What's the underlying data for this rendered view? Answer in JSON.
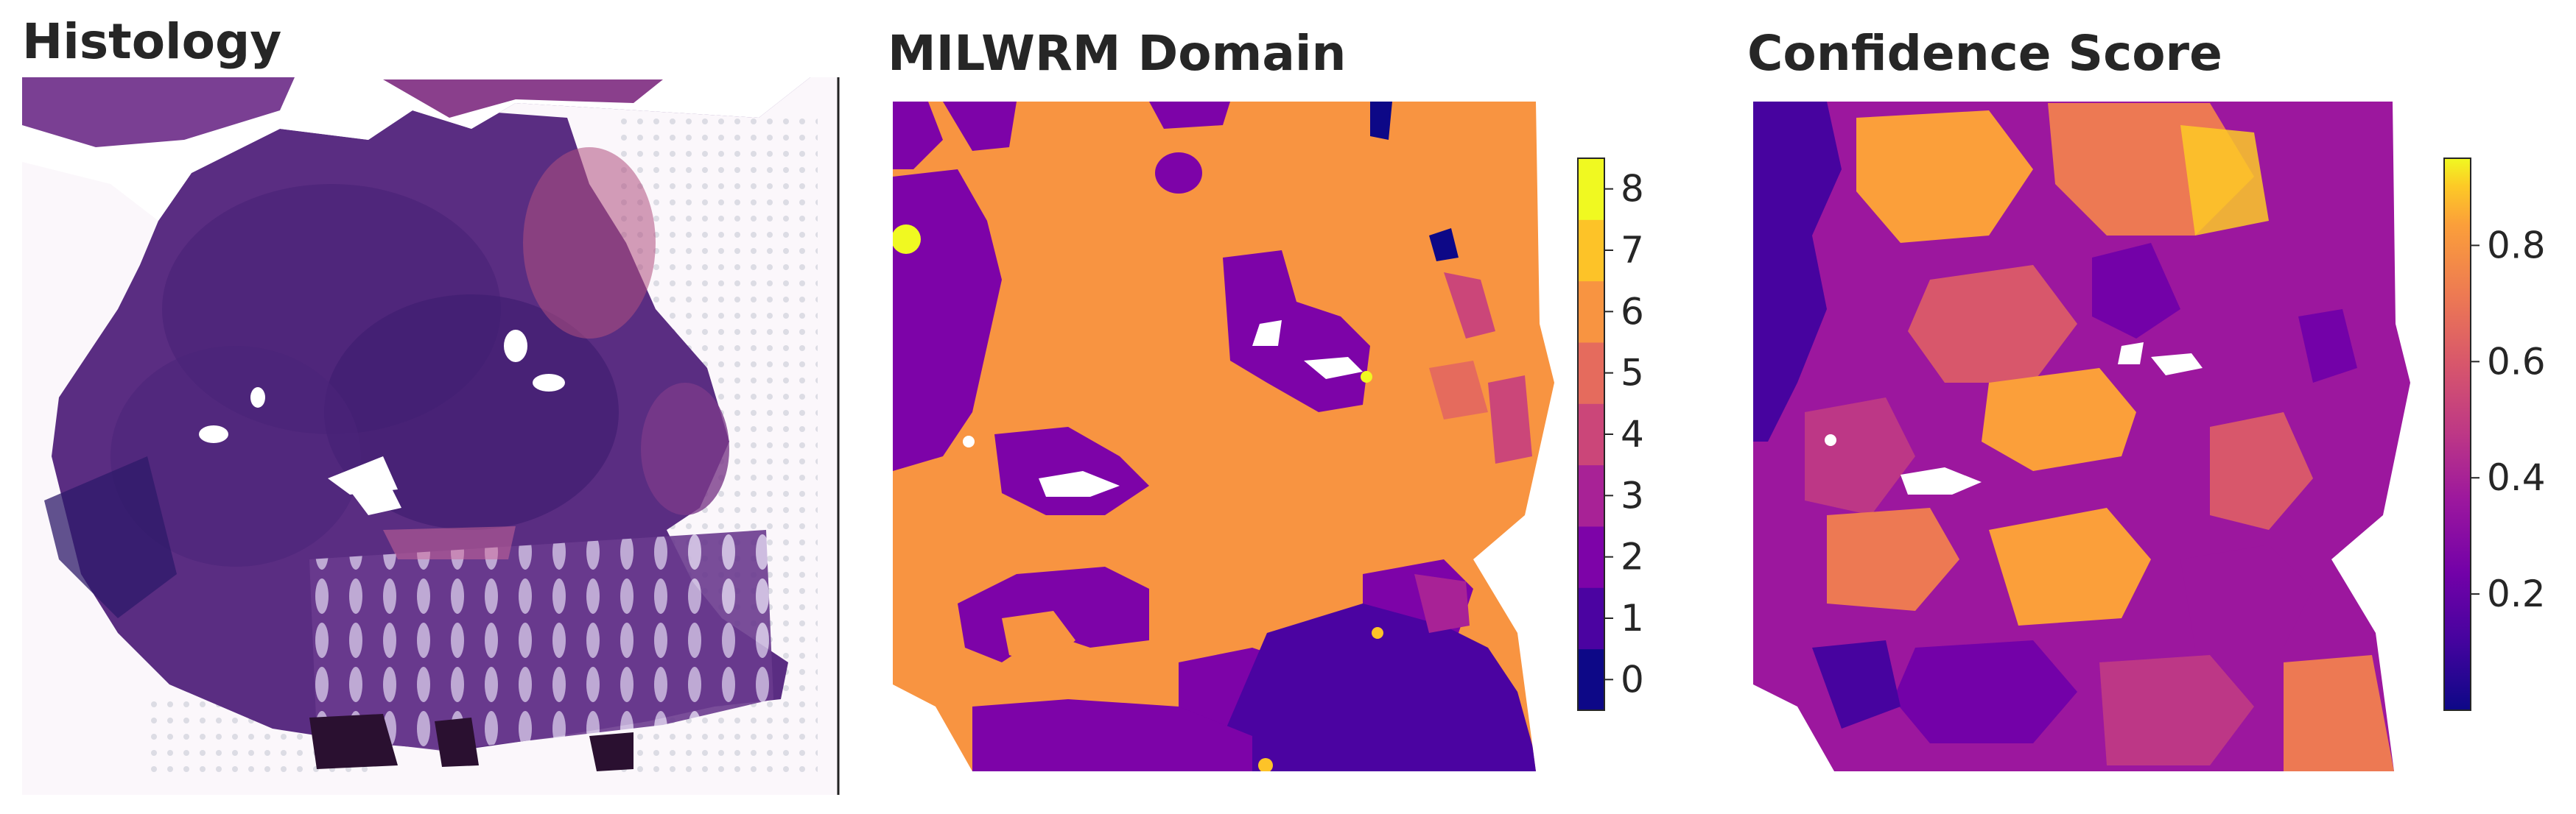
{
  "panels": {
    "histology": {
      "title": "Histology"
    },
    "domain": {
      "title": "MILWRM Domain"
    },
    "confidence": {
      "title": "Confidence Score"
    }
  },
  "domain_colorbar": {
    "ticks": [
      "0",
      "1",
      "2",
      "3",
      "4",
      "5",
      "6",
      "7",
      "8"
    ],
    "colors": [
      "#0d0887",
      "#4b03a1",
      "#7d03a8",
      "#a82296",
      "#cb4679",
      "#e56b5d",
      "#f89441",
      "#fdc328",
      "#f0f921"
    ]
  },
  "confidence_colorbar": {
    "ticks": [
      "0.2",
      "0.4",
      "0.6",
      "0.8"
    ],
    "tick_values": [
      0.2,
      0.4,
      0.6,
      0.8
    ],
    "range": [
      0.0,
      0.95
    ],
    "colormap": "plasma"
  },
  "colors": {
    "tissue_dark": "#5b2f83",
    "tissue_pink": "#b4507e",
    "domain_background": "#f89441",
    "domain_purple": "#7d03a8",
    "domain_indigo": "#4b03a1"
  }
}
